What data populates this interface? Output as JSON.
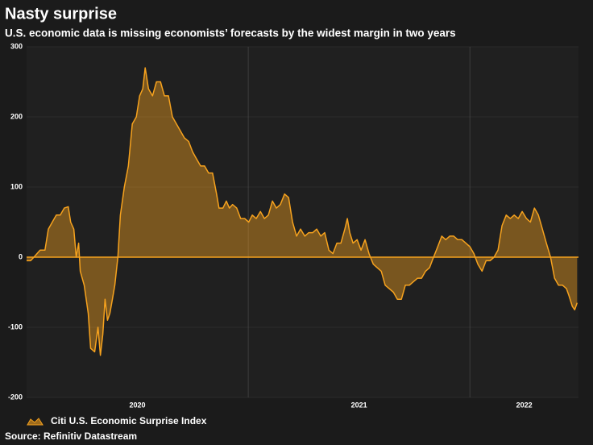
{
  "chart_data": {
    "type": "area",
    "title": "Nasty surprise",
    "subtitle": "U.S. economic data is missing economists’ forecasts by the widest margin in two years",
    "source": "Source: Refinitiv Datastream",
    "xlim": [
      2020,
      2022.49
    ],
    "xticks": [
      2020,
      2021,
      2022
    ],
    "ylim": [
      -200,
      300
    ],
    "yticks": [
      -200,
      -100,
      0,
      100,
      200,
      300
    ],
    "grid": true,
    "legend": "bottom-left",
    "series": [
      {
        "name": "Citi U.S. Economic Surprise Index",
        "color": "#f6a21e",
        "x": [
          2020.0,
          2020.018,
          2020.033,
          2020.047,
          2020.061,
          2020.083,
          2020.098,
          2020.116,
          2020.134,
          2020.152,
          2020.17,
          2020.188,
          2020.199,
          2020.213,
          2020.224,
          2020.235,
          2020.242,
          2020.26,
          2020.278,
          2020.289,
          2020.307,
          2020.322,
          2020.333,
          2020.344,
          2020.354,
          2020.365,
          2020.376,
          2020.387,
          2020.398,
          2020.412,
          2020.423,
          2020.441,
          2020.459,
          2020.477,
          2020.495,
          2020.51,
          2020.524,
          2020.535,
          2020.55,
          2020.568,
          2020.586,
          2020.604,
          2020.622,
          2020.64,
          2020.658,
          2020.676,
          2020.694,
          2020.712,
          2020.731,
          2020.749,
          2020.767,
          2020.785,
          2020.803,
          2020.821,
          2020.839,
          2020.857,
          2020.868,
          2020.886,
          2020.901,
          2020.915,
          2020.929,
          2020.948,
          2020.966,
          2020.984,
          2021.002,
          2021.018,
          2021.036,
          2021.055,
          2021.073,
          2021.091,
          2021.109,
          2021.127,
          2021.145,
          2021.164,
          2021.182,
          2021.2,
          2021.218,
          2021.236,
          2021.255,
          2021.273,
          2021.291,
          2021.309,
          2021.327,
          2021.345,
          2021.364,
          2021.382,
          2021.4,
          2021.418,
          2021.436,
          2021.447,
          2021.458,
          2021.473,
          2021.491,
          2021.509,
          2021.527,
          2021.545,
          2021.564,
          2021.582,
          2021.6,
          2021.618,
          2021.636,
          2021.655,
          2021.673,
          2021.691,
          2021.709,
          2021.727,
          2021.745,
          2021.764,
          2021.782,
          2021.8,
          2021.818,
          2021.836,
          2021.855,
          2021.873,
          2021.891,
          2021.909,
          2021.927,
          2021.945,
          2021.964,
          2021.982,
          2022.0,
          2022.018,
          2022.036,
          2022.055,
          2022.073,
          2022.091,
          2022.109,
          2022.127,
          2022.145,
          2022.164,
          2022.182,
          2022.2,
          2022.218,
          2022.236,
          2022.255,
          2022.273,
          2022.291,
          2022.309,
          2022.327,
          2022.345,
          2022.364,
          2022.382,
          2022.4,
          2022.418,
          2022.436,
          2022.447,
          2022.462,
          2022.473,
          2022.484
        ],
        "values": [
          -5,
          -5,
          0,
          5,
          10,
          10,
          40,
          50,
          60,
          60,
          70,
          72,
          50,
          40,
          0,
          20,
          -20,
          -40,
          -80,
          -130,
          -135,
          -100,
          -140,
          -110,
          -60,
          -90,
          -80,
          -60,
          -40,
          0,
          60,
          100,
          130,
          190,
          200,
          230,
          240,
          270,
          240,
          230,
          250,
          250,
          230,
          230,
          200,
          190,
          180,
          170,
          165,
          150,
          140,
          130,
          130,
          120,
          120,
          90,
          70,
          70,
          80,
          70,
          75,
          70,
          55,
          55,
          50,
          60,
          55,
          65,
          55,
          60,
          80,
          70,
          75,
          90,
          85,
          50,
          30,
          40,
          30,
          35,
          35,
          40,
          30,
          35,
          10,
          5,
          20,
          20,
          40,
          55,
          35,
          20,
          25,
          10,
          25,
          5,
          -10,
          -15,
          -20,
          -40,
          -45,
          -50,
          -60,
          -60,
          -40,
          -40,
          -35,
          -30,
          -30,
          -20,
          -15,
          0,
          15,
          30,
          25,
          30,
          30,
          25,
          25,
          20,
          15,
          5,
          -10,
          -20,
          -5,
          -5,
          0,
          10,
          45,
          60,
          55,
          60,
          55,
          65,
          55,
          50,
          70,
          60,
          40,
          20,
          0,
          -30,
          -40,
          -40,
          -45,
          -55,
          -70,
          -75,
          -65
        ]
      }
    ]
  }
}
